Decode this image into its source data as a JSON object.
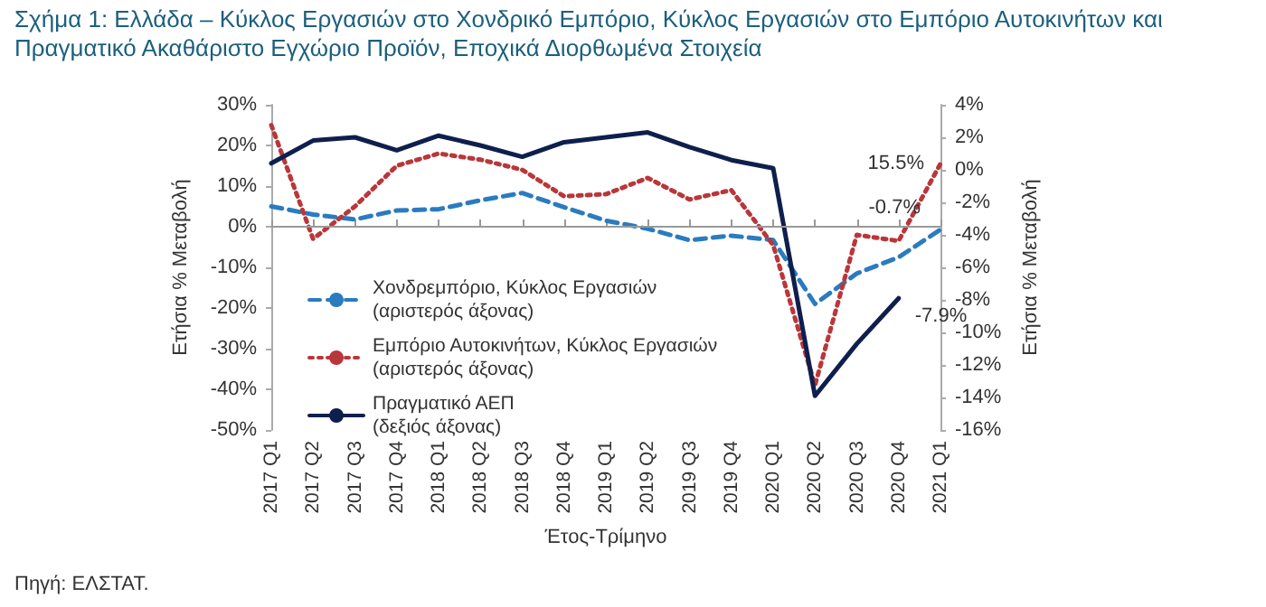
{
  "chart_data": {
    "type": "line",
    "title": "Σχήμα 1: Ελλάδα – Κύκλος Εργασιών στο Χονδρικό Εμπόριο, Κύκλος Εργασιών στο Εμπόριο Αυτοκινήτων και Πραγματικό Ακαθάριστο Εγχώριο Προϊόν, Εποχικά Διορθωμένα Στοιχεία",
    "xlabel": "Έτος-Τρίμηνο",
    "ylabel": "Ετήσια % Μεταβολή",
    "y2label": "Ετήσια % Μεταβολή",
    "categories": [
      "2017 Q1",
      "2017 Q2",
      "2017 Q3",
      "2017 Q4",
      "2018 Q1",
      "2018 Q2",
      "2018 Q3",
      "2018 Q4",
      "2019 Q1",
      "2019 Q2",
      "2019 Q3",
      "2019 Q4",
      "2020 Q1",
      "2020 Q2",
      "2020 Q3",
      "2020 Q4",
      "2021 Q1"
    ],
    "series": [
      {
        "name": "Χονδρεμπόριο, Κύκλος Εργασιών (αριστερός άξονας)",
        "color": "#2b7bbf",
        "line_style": "dashed",
        "values": [
          5,
          3,
          1.8,
          4,
          4.3,
          6.5,
          8.3,
          4.8,
          1.5,
          -0.5,
          -3.3,
          -2.2,
          -3.3,
          -19,
          -11.5,
          -7.5,
          -0.7
        ],
        "value_labels": [
          null,
          null,
          null,
          null,
          null,
          null,
          null,
          null,
          null,
          null,
          null,
          null,
          null,
          null,
          null,
          null,
          "-0.7%"
        ]
      },
      {
        "name": "Εμπόριο Αυτοκινήτων, Κύκλος Εργασιών (αριστερός άξονας)",
        "color": "#b8373a",
        "line_style": "dotted",
        "values": [
          25,
          -3,
          5,
          15,
          18,
          16.5,
          14,
          7.5,
          8,
          12,
          6.7,
          9,
          -4.5,
          -39,
          -2,
          -3.5,
          15.5
        ],
        "value_labels": [
          null,
          null,
          null,
          null,
          null,
          null,
          null,
          null,
          null,
          null,
          null,
          null,
          null,
          null,
          null,
          null,
          "15.5%"
        ]
      },
      {
        "name": "Πραγματικό ΑΕΠ (δεξιός άξονας)",
        "color": "#0f1f4d",
        "line_style": "solid",
        "axis": "y2",
        "values": [
          0.4,
          1.8,
          2,
          1.2,
          2.1,
          1.5,
          0.8,
          1.7,
          2,
          2.3,
          1.4,
          0.6,
          0.1,
          -13.9,
          -10.7,
          -7.9,
          null
        ],
        "value_labels": [
          null,
          null,
          null,
          null,
          null,
          null,
          null,
          null,
          null,
          null,
          null,
          null,
          null,
          null,
          null,
          "-7.9%",
          null
        ]
      }
    ],
    "ref_lines": [
      {
        "axis": "y",
        "value": 0,
        "color": "#999999"
      }
    ],
    "ylim": [
      -50,
      30
    ],
    "yticks": [
      {
        "value": -50,
        "label": "-50%"
      },
      {
        "value": -40,
        "label": "-40%"
      },
      {
        "value": -30,
        "label": "-30%"
      },
      {
        "value": -20,
        "label": "-20%"
      },
      {
        "value": -10,
        "label": "-10%"
      },
      {
        "value": 0,
        "label": "0%"
      },
      {
        "value": 10,
        "label": "10%"
      },
      {
        "value": 20,
        "label": "20%"
      },
      {
        "value": 30,
        "label": "30%"
      }
    ],
    "y2lim": [
      -16,
      4
    ],
    "y2ticks": [
      {
        "value": -16,
        "label": "-16%"
      },
      {
        "value": -14,
        "label": "-14%"
      },
      {
        "value": -12,
        "label": "-12%"
      },
      {
        "value": -10,
        "label": "-10%"
      },
      {
        "value": -8,
        "label": "-8%"
      },
      {
        "value": -6,
        "label": "-6%"
      },
      {
        "value": -4,
        "label": "-4%"
      },
      {
        "value": -2,
        "label": "-2%"
      },
      {
        "value": 0,
        "label": "0%"
      },
      {
        "value": 2,
        "label": "2%"
      },
      {
        "value": 4,
        "label": "4%"
      }
    ],
    "grid": false,
    "legend": "bottom left",
    "marker": "none",
    "annotations": [
      "Πηγή: ΕΛΣΤΑΤ."
    ]
  }
}
